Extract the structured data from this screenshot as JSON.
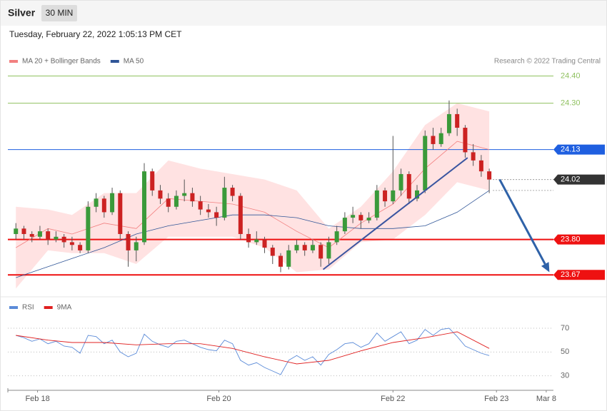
{
  "header": {
    "symbol": "Silver",
    "interval": "30 MIN",
    "timestamp": "Tuesday, February 22, 2022 1:05:13 PM CET"
  },
  "chart_data": [
    {
      "type": "candlestick",
      "source": "Research © 2022 Trading Central",
      "up_color": "#3a9a3a",
      "down_color": "#cc2222",
      "ylim": [
        23.6,
        24.43
      ],
      "ohlc": [
        [
          23.82,
          23.86,
          23.8,
          23.84
        ],
        [
          23.84,
          23.85,
          23.8,
          23.82
        ],
        [
          23.82,
          23.83,
          23.79,
          23.81
        ],
        [
          23.81,
          23.85,
          23.8,
          23.83
        ],
        [
          23.83,
          23.84,
          23.78,
          23.8
        ],
        [
          23.8,
          23.83,
          23.79,
          23.81
        ],
        [
          23.81,
          23.82,
          23.77,
          23.79
        ],
        [
          23.79,
          23.81,
          23.76,
          23.78
        ],
        [
          23.78,
          23.79,
          23.75,
          23.76
        ],
        [
          23.76,
          23.94,
          23.75,
          23.92
        ],
        [
          23.92,
          23.97,
          23.9,
          23.95
        ],
        [
          23.95,
          23.96,
          23.88,
          23.9
        ],
        [
          23.9,
          23.99,
          23.89,
          23.97
        ],
        [
          23.97,
          23.98,
          23.8,
          23.82
        ],
        [
          23.82,
          23.83,
          23.7,
          23.76
        ],
        [
          23.76,
          23.81,
          23.72,
          23.79
        ],
        [
          23.79,
          24.08,
          23.78,
          24.05
        ],
        [
          24.05,
          24.06,
          23.96,
          23.98
        ],
        [
          23.98,
          24.0,
          23.93,
          23.95
        ],
        [
          23.95,
          23.97,
          23.9,
          23.92
        ],
        [
          23.92,
          23.98,
          23.91,
          23.96
        ],
        [
          23.96,
          24.02,
          23.94,
          23.97
        ],
        [
          23.97,
          23.99,
          23.92,
          23.94
        ],
        [
          23.94,
          23.96,
          23.89,
          23.91
        ],
        [
          23.91,
          23.93,
          23.88,
          23.9
        ],
        [
          23.9,
          23.92,
          23.85,
          23.88
        ],
        [
          23.88,
          24.03,
          23.87,
          23.99
        ],
        [
          23.99,
          24.0,
          23.94,
          23.96
        ],
        [
          23.96,
          23.97,
          23.8,
          23.82
        ],
        [
          23.82,
          23.84,
          23.77,
          23.79
        ],
        [
          23.79,
          23.83,
          23.78,
          23.8
        ],
        [
          23.8,
          23.81,
          23.75,
          23.77
        ],
        [
          23.77,
          23.78,
          23.71,
          23.74
        ],
        [
          23.74,
          23.75,
          23.68,
          23.7
        ],
        [
          23.7,
          23.78,
          23.69,
          23.76
        ],
        [
          23.76,
          23.8,
          23.75,
          23.78
        ],
        [
          23.78,
          23.79,
          23.74,
          23.76
        ],
        [
          23.76,
          23.8,
          23.75,
          23.78
        ],
        [
          23.78,
          23.79,
          23.7,
          23.73
        ],
        [
          23.73,
          23.81,
          23.71,
          23.79
        ],
        [
          23.79,
          23.85,
          23.78,
          23.83
        ],
        [
          23.83,
          23.9,
          23.82,
          23.88
        ],
        [
          23.88,
          23.92,
          23.86,
          23.89
        ],
        [
          23.89,
          23.9,
          23.84,
          23.87
        ],
        [
          23.87,
          23.9,
          23.86,
          23.88
        ],
        [
          23.88,
          24.0,
          23.87,
          23.98
        ],
        [
          23.98,
          23.99,
          23.92,
          23.94
        ],
        [
          23.94,
          24.18,
          23.93,
          23.98
        ],
        [
          23.98,
          24.06,
          23.96,
          24.04
        ],
        [
          24.04,
          24.05,
          23.93,
          23.95
        ],
        [
          23.95,
          24.0,
          23.94,
          23.98
        ],
        [
          23.98,
          24.2,
          23.97,
          24.18
        ],
        [
          24.18,
          24.21,
          24.13,
          24.15
        ],
        [
          24.15,
          24.21,
          24.14,
          24.19
        ],
        [
          24.19,
          24.31,
          24.18,
          24.26
        ],
        [
          24.26,
          24.28,
          24.18,
          24.21
        ],
        [
          24.21,
          24.22,
          24.1,
          24.12
        ],
        [
          24.12,
          24.15,
          24.07,
          24.09
        ],
        [
          24.09,
          24.11,
          24.03,
          24.05
        ],
        [
          24.05,
          24.06,
          23.97,
          24.02
        ]
      ],
      "series": [
        {
          "name": "MA 20 + Bollinger Bands",
          "color": "#f28080",
          "band_color": "#ffd6d6",
          "x": [
            0,
            4,
            7,
            11,
            15,
            19,
            23,
            27,
            31,
            35,
            39,
            43,
            47,
            51,
            55,
            59
          ],
          "values": [
            23.77,
            23.84,
            23.82,
            23.86,
            23.84,
            23.95,
            23.94,
            23.93,
            23.9,
            23.83,
            23.77,
            23.86,
            23.93,
            24.06,
            24.16,
            24.13
          ],
          "upper": [
            23.92,
            23.91,
            23.89,
            23.97,
            23.97,
            24.09,
            24.06,
            24.04,
            24.02,
            23.98,
            23.84,
            23.92,
            24.05,
            24.22,
            24.3,
            24.27
          ],
          "lower": [
            23.62,
            23.76,
            23.75,
            23.75,
            23.71,
            23.81,
            23.81,
            23.81,
            23.77,
            23.68,
            23.69,
            23.79,
            23.8,
            23.89,
            24.01,
            23.98
          ]
        },
        {
          "name": "MA 50",
          "color": "#2f5597",
          "x": [
            0,
            4,
            7,
            11,
            15,
            19,
            23,
            27,
            31,
            35,
            39,
            43,
            47,
            51,
            55,
            59
          ],
          "values": [
            23.66,
            23.7,
            23.73,
            23.77,
            23.82,
            23.85,
            23.87,
            23.89,
            23.89,
            23.88,
            23.85,
            23.84,
            23.84,
            23.85,
            23.9,
            23.98
          ]
        }
      ],
      "levels": [
        {
          "value": 24.4,
          "label": "24.40",
          "color": "#8fc15f",
          "style": "plain"
        },
        {
          "value": 24.3,
          "label": "24.30",
          "color": "#8fc15f",
          "style": "plain"
        },
        {
          "value": 24.13,
          "label": "24.13",
          "color": "#1f5fe0",
          "style": "badge"
        },
        {
          "value": 24.02,
          "label": "24.02",
          "color": "#333333",
          "style": "last"
        },
        {
          "value": 23.8,
          "label": "23.80",
          "color": "#ee1111",
          "style": "badge"
        },
        {
          "value": 23.67,
          "label": "23.67",
          "color": "#ee1111",
          "style": "badge"
        }
      ],
      "trendline": {
        "x": [
          38.3,
          56.3
        ],
        "y": [
          23.69,
          24.1
        ],
        "color": "#3a55a0"
      },
      "arrow": {
        "x": [
          60.3,
          66.5
        ],
        "y": [
          24.02,
          23.68
        ],
        "color": "#2f62a8"
      }
    },
    {
      "type": "line",
      "ylim": [
        19,
        82
      ],
      "yticks": [
        30,
        50,
        70
      ],
      "xlim": [
        -1,
        67
      ],
      "xticks": [
        {
          "value": 2.7,
          "label": "Feb 18"
        },
        {
          "value": 25.3,
          "label": "Feb 20"
        },
        {
          "value": 47,
          "label": "Feb 22"
        },
        {
          "value": 59.9,
          "label": "Feb 23"
        },
        {
          "value": 66.1,
          "label": "Mar 8"
        }
      ],
      "series": [
        {
          "name": "RSI",
          "color": "#5b8bd8",
          "values": [
            64,
            62,
            59,
            61,
            57,
            59,
            55,
            54,
            49,
            64,
            63,
            57,
            60,
            50,
            46,
            49,
            65,
            59,
            56,
            54,
            59,
            60,
            57,
            54,
            52,
            51,
            60,
            57,
            43,
            39,
            41,
            37,
            34,
            31,
            43,
            47,
            43,
            46,
            39,
            48,
            52,
            57,
            58,
            54,
            57,
            66,
            59,
            63,
            67,
            57,
            60,
            69,
            64,
            69,
            70,
            63,
            55,
            52,
            49,
            47
          ]
        },
        {
          "name": "9MA",
          "color": "#e02020",
          "x": [
            0,
            4,
            7,
            11,
            15,
            19,
            23,
            27,
            31,
            35,
            39,
            43,
            47,
            51,
            55,
            59
          ],
          "values": [
            64,
            60,
            58,
            58,
            56,
            57,
            57,
            53,
            46,
            40,
            43,
            51,
            58,
            62,
            67,
            53
          ]
        }
      ]
    }
  ]
}
